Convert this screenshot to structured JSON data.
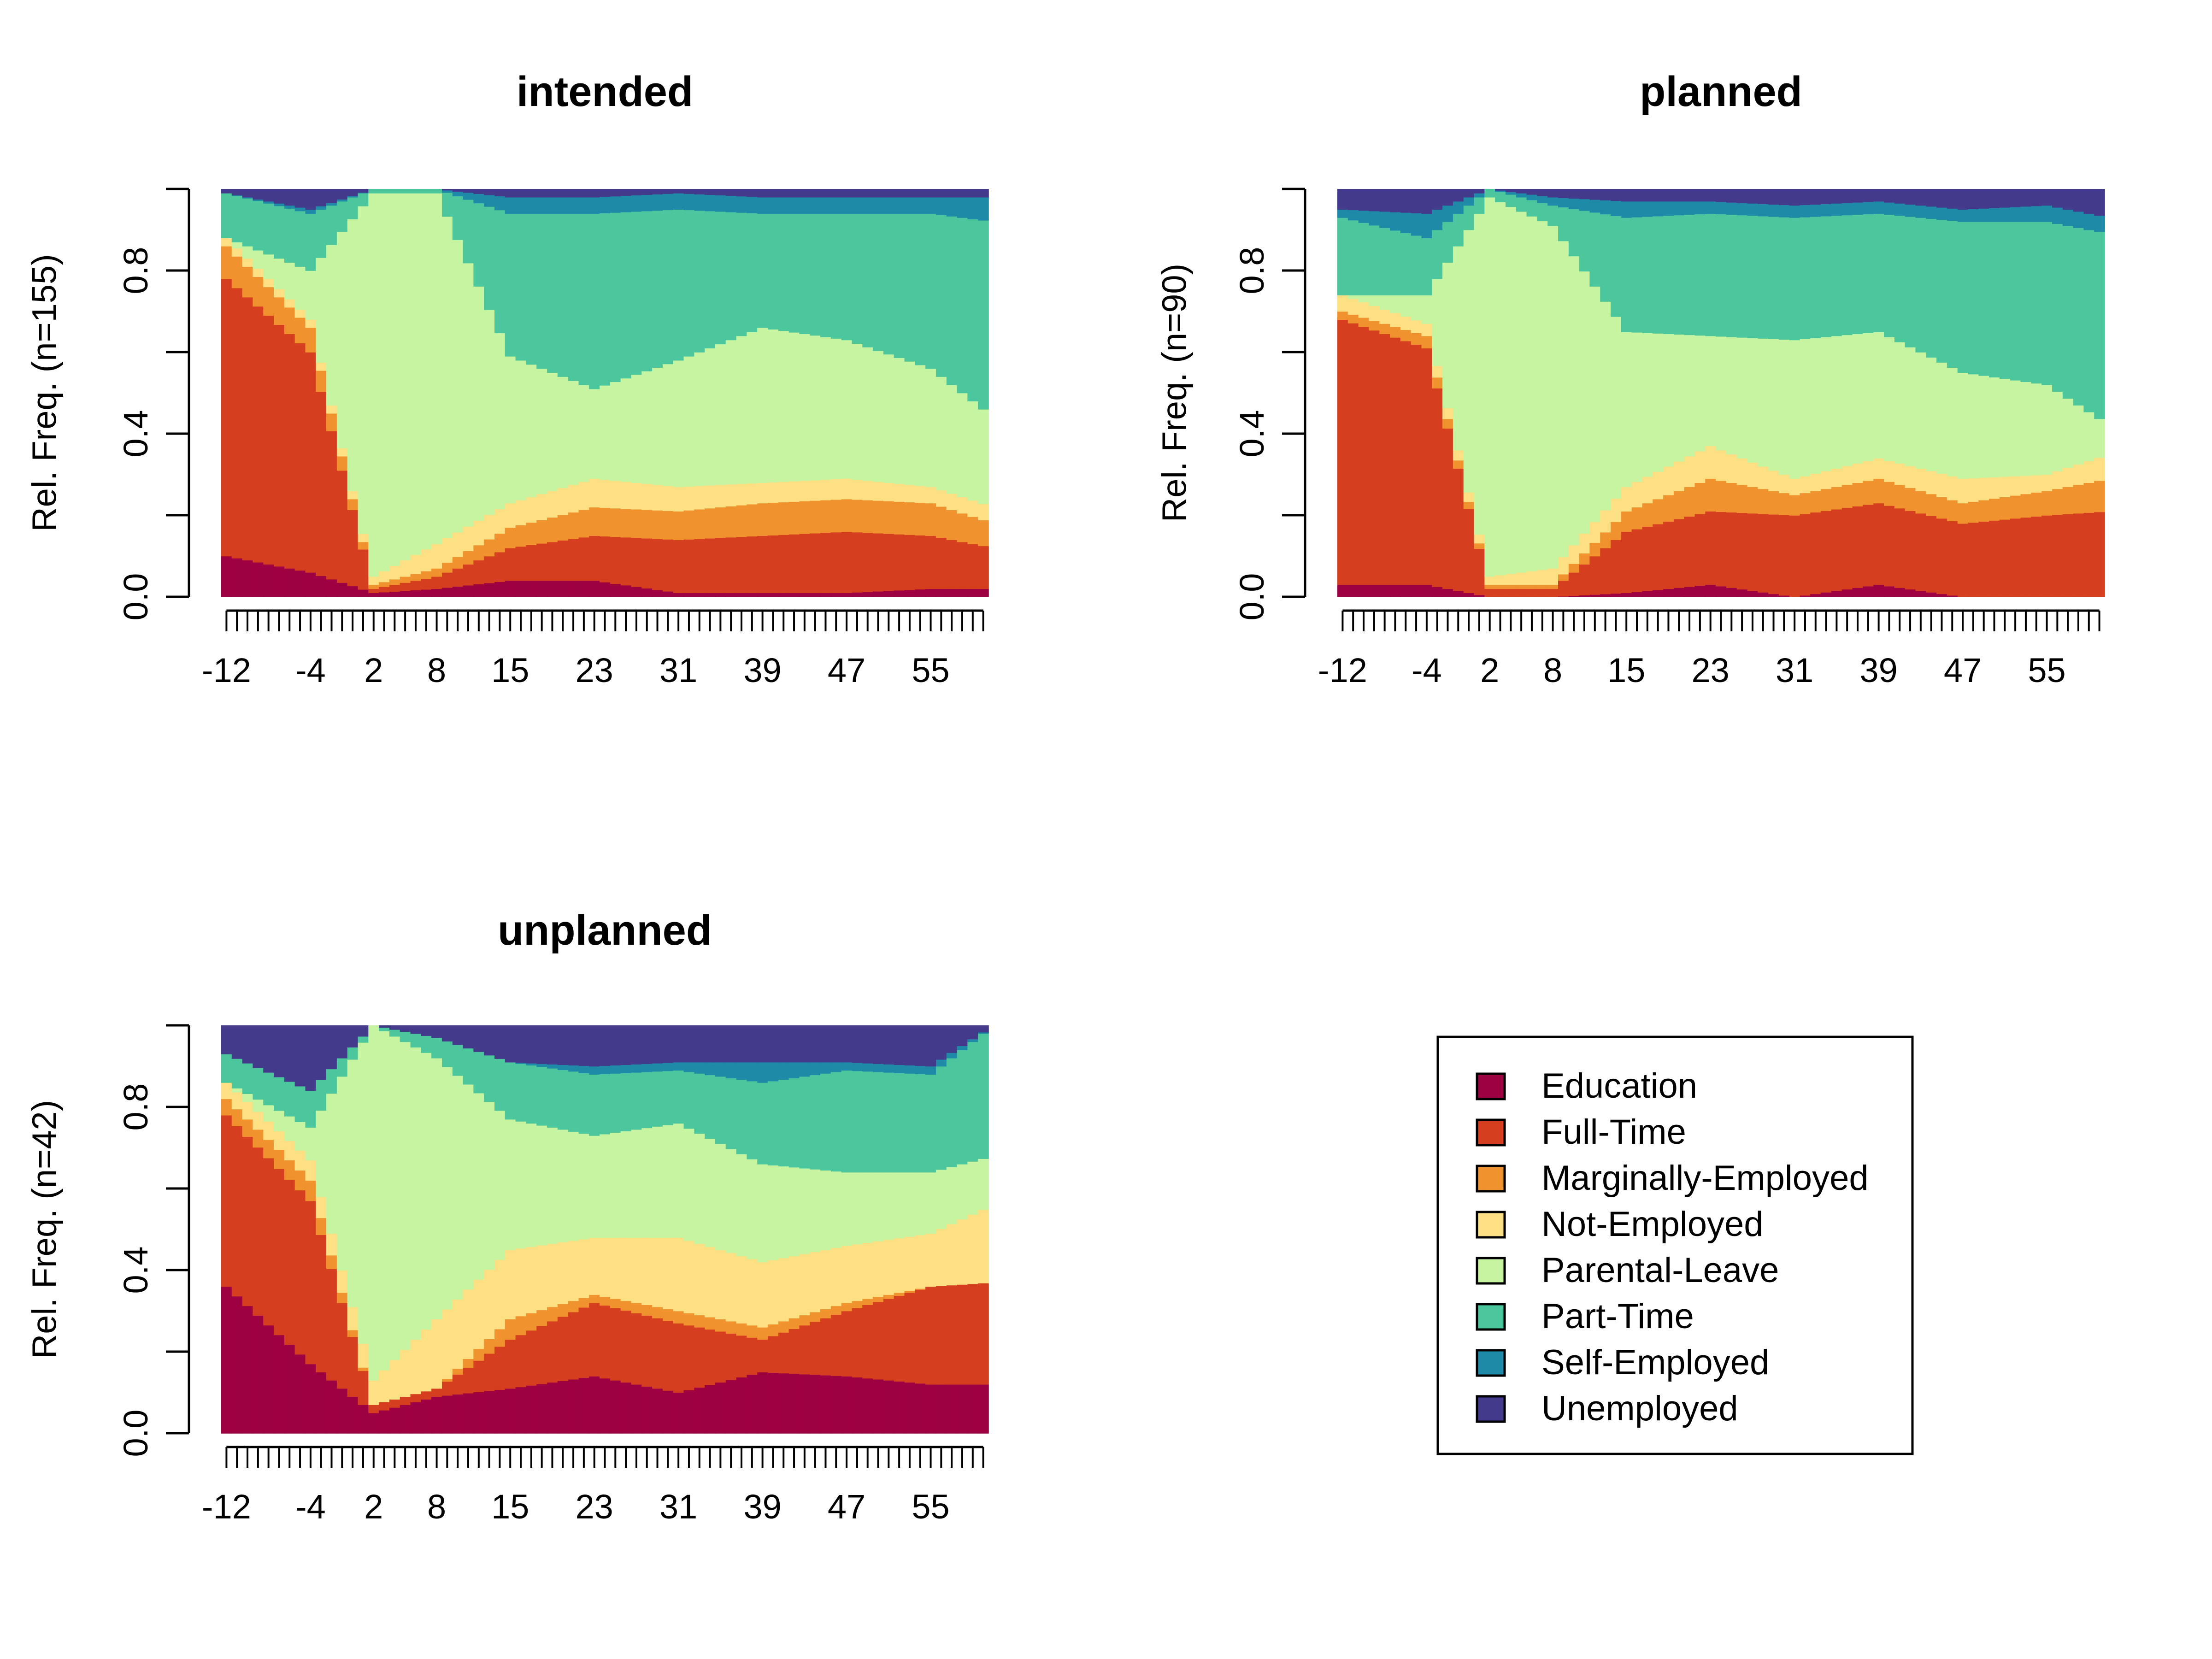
{
  "colors": {
    "Education": "#9E0142",
    "Full-Time": "#D53E1F",
    "Marginally-Employed": "#F0932E",
    "Not-Employed": "#FDE083",
    "Parental-Leave": "#C7F4A0",
    "Part-Time": "#4CC79D",
    "Self-Employed": "#1F8AA8",
    "Unemployed": "#433A8C"
  },
  "legend": {
    "entries": [
      "Education",
      "Full-Time",
      "Marginally-Employed",
      "Not-Employed",
      "Parental-Leave",
      "Part-Time",
      "Self-Employed",
      "Unemployed"
    ]
  },
  "chart_data": [
    {
      "type": "area",
      "subtype": "stacked-state-distribution",
      "title": "intended",
      "ylabel": "Rel. Freq. (n=155)",
      "ylim": [
        0,
        1
      ],
      "yticks": [
        "0.0",
        "0.4",
        "0.8"
      ],
      "x_ticklabels": [
        "-12",
        "-4",
        "2",
        "8",
        "15",
        "23",
        "31",
        "39",
        "47",
        "55"
      ],
      "x": [
        -12,
        -4,
        2,
        8,
        15,
        23,
        31,
        39,
        47,
        55,
        61
      ],
      "series": [
        {
          "name": "Education",
          "values": [
            0.1,
            0.06,
            0.01,
            0.02,
            0.04,
            0.04,
            0.01,
            0.01,
            0.01,
            0.02,
            0.02
          ]
        },
        {
          "name": "Full-Time",
          "values": [
            0.68,
            0.54,
            0.01,
            0.03,
            0.08,
            0.11,
            0.13,
            0.14,
            0.15,
            0.13,
            0.1
          ]
        },
        {
          "name": "Marginally-Employed",
          "values": [
            0.08,
            0.06,
            0.01,
            0.02,
            0.05,
            0.07,
            0.07,
            0.08,
            0.08,
            0.08,
            0.06
          ]
        },
        {
          "name": "Not-Employed",
          "values": [
            0.02,
            0.02,
            0.02,
            0.06,
            0.06,
            0.07,
            0.06,
            0.05,
            0.05,
            0.04,
            0.04
          ]
        },
        {
          "name": "Parental-Leave",
          "values": [
            0.0,
            0.12,
            0.94,
            0.86,
            0.36,
            0.22,
            0.31,
            0.38,
            0.34,
            0.29,
            0.22
          ]
        },
        {
          "name": "Part-Time",
          "values": [
            0.11,
            0.14,
            0.01,
            0.01,
            0.35,
            0.43,
            0.37,
            0.28,
            0.31,
            0.38,
            0.48
          ]
        },
        {
          "name": "Self-Employed",
          "values": [
            0.0,
            0.01,
            0.0,
            0.0,
            0.04,
            0.04,
            0.04,
            0.04,
            0.04,
            0.04,
            0.06
          ]
        },
        {
          "name": "Unemployed",
          "values": [
            0.01,
            0.05,
            0.0,
            0.0,
            0.02,
            0.02,
            0.01,
            0.02,
            0.02,
            0.02,
            0.02
          ]
        }
      ]
    },
    {
      "type": "area",
      "subtype": "stacked-state-distribution",
      "title": "planned",
      "ylabel": "Rel. Freq. (n=90)",
      "ylim": [
        0,
        1
      ],
      "yticks": [
        "0.0",
        "0.4",
        "0.8"
      ],
      "x_ticklabels": [
        "-12",
        "-4",
        "2",
        "8",
        "15",
        "23",
        "31",
        "39",
        "47",
        "55"
      ],
      "x": [
        -12,
        -4,
        2,
        8,
        15,
        23,
        31,
        39,
        47,
        55,
        61
      ],
      "series": [
        {
          "name": "Education",
          "values": [
            0.03,
            0.03,
            0.0,
            0.0,
            0.01,
            0.03,
            0.0,
            0.03,
            0.0,
            0.0,
            0.0
          ]
        },
        {
          "name": "Full-Time",
          "values": [
            0.65,
            0.58,
            0.02,
            0.02,
            0.15,
            0.18,
            0.2,
            0.2,
            0.18,
            0.2,
            0.21
          ]
        },
        {
          "name": "Marginally-Employed",
          "values": [
            0.02,
            0.03,
            0.01,
            0.01,
            0.05,
            0.08,
            0.05,
            0.06,
            0.05,
            0.06,
            0.08
          ]
        },
        {
          "name": "Not-Employed",
          "values": [
            0.04,
            0.03,
            0.02,
            0.04,
            0.06,
            0.08,
            0.04,
            0.05,
            0.06,
            0.04,
            0.06
          ]
        },
        {
          "name": "Parental-Leave",
          "values": [
            0.0,
            0.07,
            0.93,
            0.84,
            0.38,
            0.27,
            0.34,
            0.31,
            0.26,
            0.22,
            0.07
          ]
        },
        {
          "name": "Part-Time",
          "values": [
            0.19,
            0.14,
            0.02,
            0.05,
            0.28,
            0.3,
            0.3,
            0.29,
            0.37,
            0.4,
            0.47
          ]
        },
        {
          "name": "Self-Employed",
          "values": [
            0.02,
            0.06,
            0.0,
            0.02,
            0.04,
            0.03,
            0.03,
            0.03,
            0.03,
            0.04,
            0.04
          ]
        },
        {
          "name": "Unemployed",
          "values": [
            0.05,
            0.06,
            0.0,
            0.02,
            0.03,
            0.03,
            0.04,
            0.03,
            0.05,
            0.04,
            0.07
          ]
        }
      ]
    },
    {
      "type": "area",
      "subtype": "stacked-state-distribution",
      "title": "unplanned",
      "ylabel": "Rel. Freq. (n=42)",
      "ylim": [
        0,
        1
      ],
      "yticks": [
        "0.0",
        "0.4",
        "0.8"
      ],
      "x_ticklabels": [
        "-12",
        "-4",
        "2",
        "8",
        "15",
        "23",
        "31",
        "39",
        "47",
        "55"
      ],
      "x": [
        -12,
        -4,
        2,
        8,
        15,
        23,
        31,
        39,
        47,
        55,
        61
      ],
      "series": [
        {
          "name": "Education",
          "values": [
            0.36,
            0.17,
            0.05,
            0.09,
            0.11,
            0.14,
            0.1,
            0.15,
            0.14,
            0.12,
            0.12
          ]
        },
        {
          "name": "Full-Time",
          "values": [
            0.42,
            0.4,
            0.02,
            0.02,
            0.12,
            0.18,
            0.17,
            0.08,
            0.16,
            0.24,
            0.25
          ]
        },
        {
          "name": "Marginally-Employed",
          "values": [
            0.04,
            0.05,
            0.0,
            0.0,
            0.05,
            0.02,
            0.03,
            0.03,
            0.02,
            0.0,
            0.0
          ]
        },
        {
          "name": "Not-Employed",
          "values": [
            0.04,
            0.05,
            0.06,
            0.17,
            0.17,
            0.14,
            0.18,
            0.16,
            0.14,
            0.13,
            0.19
          ]
        },
        {
          "name": "Parental-Leave",
          "values": [
            0.0,
            0.08,
            0.87,
            0.64,
            0.32,
            0.25,
            0.28,
            0.24,
            0.18,
            0.15,
            0.12
          ]
        },
        {
          "name": "Part-Time",
          "values": [
            0.07,
            0.09,
            0.0,
            0.05,
            0.14,
            0.15,
            0.13,
            0.2,
            0.25,
            0.24,
            0.32
          ]
        },
        {
          "name": "Self-Employed",
          "values": [
            0.0,
            0.0,
            0.0,
            0.0,
            0.0,
            0.02,
            0.02,
            0.05,
            0.02,
            0.02,
            0.0
          ]
        },
        {
          "name": "Unemployed",
          "values": [
            0.07,
            0.16,
            0.0,
            0.03,
            0.09,
            0.1,
            0.09,
            0.09,
            0.09,
            0.1,
            0.0
          ]
        }
      ]
    }
  ]
}
